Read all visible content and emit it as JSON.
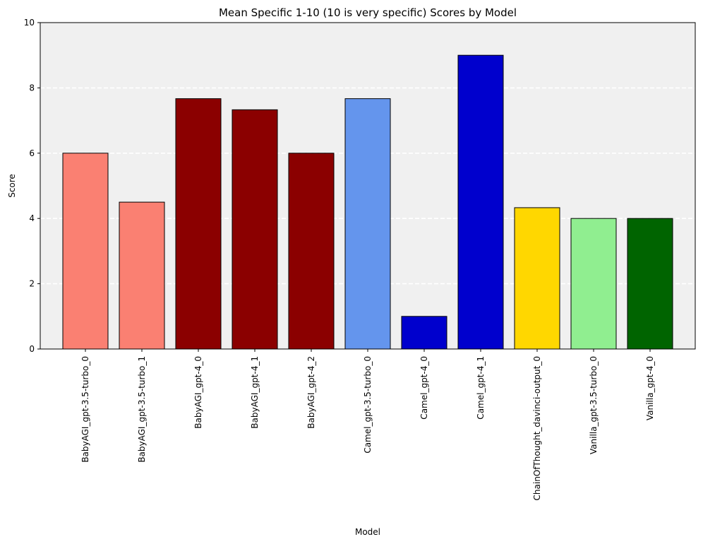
{
  "chart_data": {
    "type": "bar",
    "title": "Mean Specific 1-10 (10 is very specific) Scores by Model",
    "xlabel": "Model",
    "ylabel": "Score",
    "ylim": [
      0,
      10
    ],
    "yticks": [
      0,
      2,
      4,
      6,
      8,
      10
    ],
    "grid": "y-axis dashed, white",
    "background": "#f0f0f0",
    "categories": [
      "BabyAGI_gpt-3.5-turbo_0",
      "BabyAGI_gpt-3.5-turbo_1",
      "BabyAGI_gpt-4_0",
      "BabyAGI_gpt-4_1",
      "BabyAGI_gpt-4_2",
      "Camel_gpt-3.5-turbo_0",
      "Camel_gpt-4_0",
      "Camel_gpt-4_1",
      "ChainOfThought_davinci-output_0",
      "Vanilla_gpt-3.5-turbo_0",
      "Vanilla_gpt-4_0"
    ],
    "values": [
      6.0,
      4.5,
      7.67,
      7.33,
      6.0,
      7.67,
      1.0,
      9.0,
      4.33,
      4.0,
      4.0
    ],
    "colors": [
      "#fa8072",
      "#fa8072",
      "#8b0000",
      "#8b0000",
      "#8b0000",
      "#6495ed",
      "#0000cd",
      "#0000cd",
      "#ffd700",
      "#90ee90",
      "#006400"
    ]
  }
}
